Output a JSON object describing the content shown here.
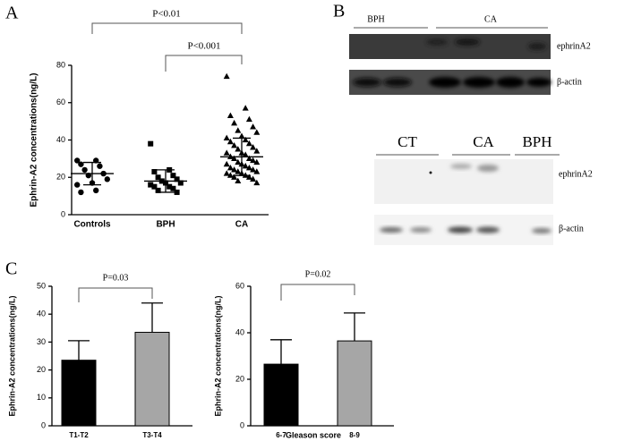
{
  "panel_labels": [
    "A",
    "B",
    "C"
  ],
  "chart_data": [
    {
      "type": "scatter",
      "ylabel": "Ephrin-A2 concentrations(ng/L)",
      "categories": [
        "Controls",
        "BPH",
        "CA"
      ],
      "markers": [
        "circle",
        "square",
        "triangle"
      ],
      "color": "#000000",
      "ylim": [
        0,
        80
      ],
      "yticks": [
        0,
        20,
        40,
        60,
        80
      ],
      "groups": [
        {
          "values": [
            29,
            29,
            27,
            26,
            24,
            22,
            21,
            19,
            17,
            16,
            13,
            12
          ],
          "mean": 22,
          "sd": 6
        },
        {
          "values": [
            38,
            24,
            23,
            21,
            20,
            19,
            18,
            17,
            17,
            16,
            15,
            15,
            14,
            13,
            12
          ],
          "mean": 18,
          "sd": 6
        },
        {
          "values": [
            74,
            57,
            53,
            51,
            49,
            47,
            45,
            44,
            42,
            41,
            40,
            39,
            38,
            37,
            36,
            35,
            34,
            33,
            33,
            32,
            31,
            30,
            30,
            29,
            28,
            28,
            27,
            27,
            26,
            25,
            25,
            24,
            24,
            23,
            23,
            22,
            22,
            21,
            21,
            20,
            20,
            19,
            18,
            17
          ],
          "mean": 31,
          "sd": 10
        }
      ],
      "annotations": [
        "P<0.01",
        "P<0.001"
      ]
    },
    {
      "type": "bar",
      "ylabel": "Ephrin-A2 concentrations(ng/L)",
      "categories": [
        "T1-T2",
        "T3-T4"
      ],
      "values": [
        23.5,
        33.5
      ],
      "errors": [
        7,
        10.5
      ],
      "colors": [
        "#000000",
        "#a6a6a6"
      ],
      "ylim": [
        0,
        50
      ],
      "yticks": [
        0,
        10,
        20,
        30,
        40,
        50
      ],
      "annotations": [
        "P=0.03"
      ]
    },
    {
      "type": "bar",
      "ylabel": "Ephrin-A2 concentrations(ng/L)",
      "xlabel": "Gleason score",
      "categories": [
        "6-7",
        "8-9"
      ],
      "values": [
        26.5,
        36.5
      ],
      "errors": [
        10.5,
        12
      ],
      "colors": [
        "#000000",
        "#a6a6a6"
      ],
      "ylim": [
        0,
        60
      ],
      "yticks": [
        0,
        20,
        40,
        60
      ],
      "annotations": [
        "P=0.02"
      ]
    }
  ],
  "blots": [
    {
      "groups": [
        "BPH",
        "CA"
      ],
      "rows": [
        "ephrinA2",
        "β-actin"
      ]
    },
    {
      "groups": [
        "CT",
        "CA",
        "BPH"
      ],
      "rows": [
        "ephrinA2",
        "β-actin"
      ]
    }
  ]
}
